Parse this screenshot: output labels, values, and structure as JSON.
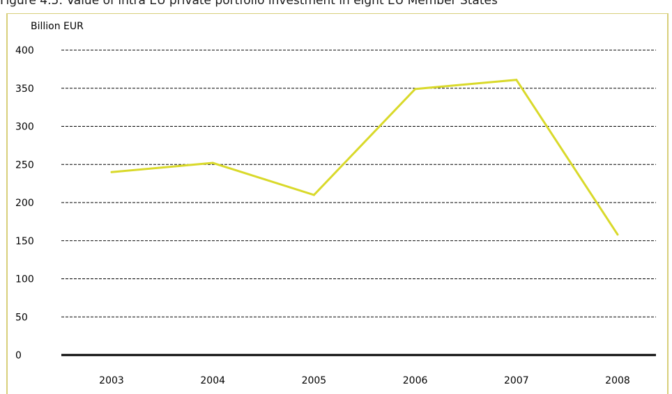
{
  "figure_title": "Figure 4.5: Value of intra EU private portfolio investment in eight EU Member States",
  "colors": {
    "line": "#d9d92a",
    "frame": "#d8cf7a",
    "grid": "#000000",
    "baseline": "#000000"
  },
  "chart_data": {
    "type": "line",
    "title": "Figure 4.5: Value of intra EU private portfolio investment in eight EU Member States",
    "xlabel": "",
    "ylabel": "Billion EUR",
    "categories": [
      "2003",
      "2004",
      "2005",
      "2006",
      "2007",
      "2008"
    ],
    "series": [
      {
        "values": [
          240,
          252,
          210,
          349,
          361,
          158
        ]
      }
    ],
    "ylim": [
      0,
      400
    ],
    "yticks": [
      0,
      50,
      100,
      150,
      200,
      250,
      300,
      350,
      400
    ],
    "ytick_labels": [
      "0",
      "50",
      "100",
      "150",
      "200",
      "250",
      "300",
      "350",
      "400"
    ],
    "grid": "horizontal dashed",
    "legend": "none"
  }
}
